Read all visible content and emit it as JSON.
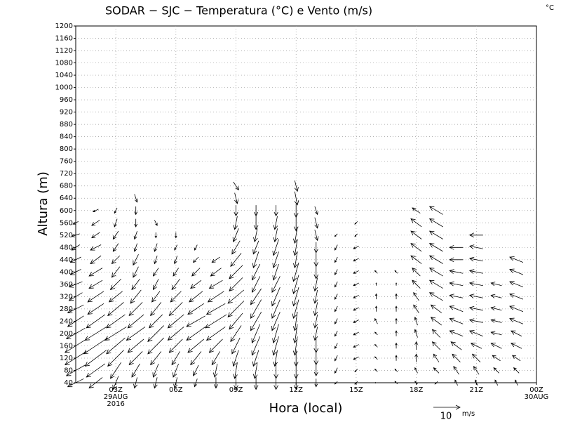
{
  "chart_data": {
    "type": "vector",
    "title": "SODAR − SJC − Temperatura (°C) e Vento (m/s)",
    "corner_label": "°C",
    "xlabel": "Hora (local)",
    "ylabel": "Altura (m)",
    "xlim": [
      1,
      24
    ],
    "ylim": [
      40,
      1200
    ],
    "xticks": [
      {
        "value": 3,
        "label": "03Z"
      },
      {
        "value": 6,
        "label": "06Z"
      },
      {
        "value": 9,
        "label": "09Z"
      },
      {
        "value": 12,
        "label": "12Z"
      },
      {
        "value": 15,
        "label": "15Z"
      },
      {
        "value": 18,
        "label": "18Z"
      },
      {
        "value": 21,
        "label": "21Z"
      },
      {
        "value": 24,
        "label": "00Z"
      }
    ],
    "date_labels": [
      {
        "value": 3,
        "label": "29AUG"
      },
      {
        "value": 3,
        "label": "2016"
      },
      {
        "value": 24,
        "label": "30AUG"
      }
    ],
    "yticks": [
      40,
      80,
      120,
      160,
      200,
      240,
      280,
      320,
      360,
      400,
      440,
      480,
      520,
      560,
      600,
      640,
      680,
      720,
      760,
      800,
      840,
      880,
      920,
      960,
      1000,
      1040,
      1080,
      1120,
      1160,
      1200
    ],
    "grid": true,
    "ref_vector": {
      "value": 10,
      "unit": "m/s"
    },
    "levels": [
      40,
      80,
      120,
      160,
      200,
      240,
      280,
      320,
      360,
      400,
      440,
      480,
      520,
      560,
      600,
      640,
      680
    ],
    "columns": [
      {
        "x": 1,
        "u": [
          -6,
          -7,
          -8,
          -8,
          -7,
          -6,
          -6,
          -5,
          -5,
          -4,
          -4,
          -3,
          -3,
          -2,
          null,
          null,
          null
        ],
        "v": [
          -3,
          -4,
          -5,
          -5,
          -4,
          -4,
          -3,
          -3,
          -2,
          -2,
          -2,
          -2,
          -1,
          -1,
          null,
          null,
          null
        ]
      },
      {
        "x": 2,
        "u": [
          -5,
          -7,
          -8,
          -9,
          -8,
          -7,
          -6,
          -6,
          -5,
          -5,
          -4,
          -4,
          -3,
          -3,
          -2,
          null,
          null
        ],
        "v": [
          -4,
          -5,
          -6,
          -6,
          -5,
          -5,
          -4,
          -4,
          -3,
          -3,
          -3,
          -2,
          -2,
          -2,
          -1,
          null,
          null
        ]
      },
      {
        "x": 3,
        "u": [
          -2,
          -4,
          -6,
          -7,
          -8,
          -7,
          -6,
          -5,
          -4,
          -3,
          -3,
          -2,
          -2,
          -1,
          -1,
          null,
          null
        ],
        "v": [
          -5,
          -6,
          -6,
          -6,
          -5,
          -5,
          -5,
          -4,
          -4,
          -4,
          -3,
          -3,
          -3,
          -3,
          -2,
          null,
          null
        ]
      },
      {
        "x": 4,
        "u": [
          -1,
          -3,
          -5,
          -6,
          -7,
          -6,
          -5,
          -4,
          -3,
          -2,
          -2,
          -1,
          -1,
          0,
          0,
          1,
          null
        ],
        "v": [
          -4,
          -5,
          -5,
          -5,
          -5,
          -5,
          -5,
          -5,
          -4,
          -4,
          -4,
          -3,
          -3,
          -3,
          -3,
          -3,
          null
        ]
      },
      {
        "x": 5,
        "u": [
          -1,
          -2,
          -4,
          -6,
          -6,
          -5,
          -4,
          -3,
          -2,
          -2,
          -1,
          -1,
          0,
          1,
          null,
          null,
          null
        ],
        "v": [
          -4,
          -5,
          -5,
          -6,
          -6,
          -5,
          -5,
          -4,
          -4,
          -3,
          -3,
          -3,
          -2,
          -2,
          null,
          null,
          null
        ]
      },
      {
        "x": 6,
        "u": [
          -1,
          -2,
          -3,
          -5,
          -6,
          -6,
          -5,
          -4,
          -3,
          -2,
          -1,
          -1,
          0,
          null,
          null,
          null,
          null
        ],
        "v": [
          -4,
          -5,
          -5,
          -5,
          -5,
          -5,
          -5,
          -4,
          -4,
          -3,
          -3,
          -2,
          -2,
          null,
          null,
          null,
          null
        ]
      },
      {
        "x": 7,
        "u": [
          -1,
          -2,
          -4,
          -6,
          -7,
          -7,
          -6,
          -5,
          -4,
          -3,
          -2,
          -1,
          null,
          null,
          null,
          null,
          null
        ],
        "v": [
          -3,
          -4,
          -5,
          -5,
          -5,
          -4,
          -4,
          -4,
          -3,
          -3,
          -2,
          -2,
          null,
          null,
          null,
          null,
          null
        ]
      },
      {
        "x": 8,
        "u": [
          0,
          -1,
          -3,
          -5,
          -7,
          -8,
          -7,
          -6,
          -5,
          -4,
          -3,
          null,
          null,
          null,
          null,
          null,
          null
        ],
        "v": [
          -4,
          -5,
          -5,
          -5,
          -5,
          -5,
          -4,
          -4,
          -3,
          -3,
          -2,
          null,
          null,
          null,
          null,
          null,
          null
        ]
      },
      {
        "x": 9,
        "u": [
          0,
          -1,
          -2,
          -3,
          -4,
          -5,
          -6,
          -6,
          -5,
          -5,
          -4,
          -3,
          -2,
          -1,
          0,
          1,
          2
        ],
        "v": [
          -5,
          -6,
          -6,
          -6,
          -6,
          -6,
          -6,
          -5,
          -5,
          -5,
          -5,
          -5,
          -5,
          -5,
          -4,
          -4,
          -3
        ]
      },
      {
        "x": 10,
        "u": [
          0,
          -1,
          -2,
          -3,
          -3,
          -4,
          -4,
          -4,
          -3,
          -3,
          -2,
          -2,
          -1,
          0,
          0,
          null,
          null
        ],
        "v": [
          -5,
          -6,
          -6,
          -7,
          -7,
          -7,
          -7,
          -6,
          -6,
          -6,
          -6,
          -5,
          -5,
          -5,
          -4,
          null,
          null
        ]
      },
      {
        "x": 11,
        "u": [
          0,
          0,
          -1,
          -2,
          -2,
          -3,
          -3,
          -3,
          -3,
          -2,
          -2,
          -2,
          -1,
          -1,
          0,
          null,
          null
        ],
        "v": [
          -5,
          -6,
          -6,
          -7,
          -7,
          -7,
          -7,
          -7,
          -6,
          -6,
          -6,
          -6,
          -5,
          -5,
          -4,
          null,
          null
        ]
      },
      {
        "x": 12,
        "u": [
          0,
          0,
          0,
          -1,
          -1,
          -1,
          -2,
          -2,
          -2,
          -2,
          -1,
          -1,
          -1,
          0,
          0,
          1,
          1
        ],
        "v": [
          -5,
          -6,
          -6,
          -7,
          -7,
          -7,
          -7,
          -7,
          -7,
          -7,
          -6,
          -6,
          -6,
          -6,
          -5,
          -5,
          -4
        ]
      },
      {
        "x": 13,
        "u": [
          0,
          0,
          0,
          0,
          -1,
          -1,
          -1,
          -1,
          -1,
          0,
          0,
          0,
          1,
          1,
          1,
          null,
          null
        ],
        "v": [
          -3,
          -4,
          -5,
          -5,
          -5,
          -5,
          -5,
          -5,
          -5,
          -5,
          -5,
          -4,
          -4,
          -4,
          -3,
          null,
          null
        ]
      },
      {
        "x": 14,
        "u": [
          -1,
          -1,
          -1,
          -1,
          -1,
          -1,
          -1,
          -1,
          -1,
          -1,
          -1,
          -1,
          -1,
          null,
          null,
          null,
          null
        ],
        "v": [
          -1,
          -2,
          -2,
          -2,
          -2,
          -2,
          -2,
          -2,
          -2,
          -2,
          -2,
          -2,
          -1,
          null,
          null,
          null,
          null
        ]
      },
      {
        "x": 15,
        "u": [
          -1,
          -1,
          -2,
          -2,
          -2,
          -2,
          -2,
          -2,
          -2,
          -2,
          -2,
          -2,
          -1,
          -1,
          null,
          null,
          null
        ],
        "v": [
          -1,
          -1,
          -1,
          -1,
          -1,
          -1,
          -1,
          -1,
          -1,
          -1,
          -1,
          -1,
          -1,
          -1,
          null,
          null,
          null
        ]
      },
      {
        "x": 16,
        "u": [
          -1,
          -1,
          -1,
          -1,
          -1,
          -1,
          0,
          0,
          0,
          -1,
          null,
          null,
          null,
          null,
          null,
          null,
          null
        ],
        "v": [
          0,
          1,
          1,
          1,
          1,
          2,
          2,
          2,
          1,
          1,
          null,
          null,
          null,
          null,
          null,
          null,
          null
        ]
      },
      {
        "x": 17,
        "u": [
          -1,
          -1,
          0,
          0,
          0,
          0,
          0,
          0,
          0,
          -1,
          null,
          null,
          null,
          null,
          null,
          null,
          null
        ],
        "v": [
          1,
          1,
          2,
          2,
          2,
          2,
          2,
          2,
          1,
          1,
          null,
          null,
          null,
          null,
          null,
          null,
          null
        ]
      },
      {
        "x": 18,
        "u": [
          -1,
          -1,
          0,
          0,
          -1,
          -1,
          -2,
          -2,
          -3,
          -3,
          -4,
          -4,
          -4,
          -4,
          -3,
          null,
          null
        ],
        "v": [
          1,
          2,
          3,
          3,
          3,
          3,
          3,
          3,
          3,
          3,
          3,
          3,
          3,
          3,
          2,
          null,
          null
        ]
      },
      {
        "x": 19,
        "u": [
          -1,
          -2,
          -2,
          -3,
          -3,
          -4,
          -4,
          -5,
          -5,
          -5,
          -5,
          -5,
          -5,
          -5,
          -5,
          null,
          null
        ],
        "v": [
          -1,
          2,
          3,
          3,
          3,
          3,
          3,
          3,
          3,
          3,
          3,
          3,
          3,
          3,
          3,
          null,
          null
        ]
      },
      {
        "x": 20,
        "u": [
          -1,
          -2,
          -3,
          -4,
          -5,
          -5,
          -5,
          -5,
          -5,
          -5,
          -5,
          -5,
          null,
          null,
          null,
          null,
          null
        ],
        "v": [
          2,
          3,
          3,
          3,
          2,
          2,
          2,
          1,
          1,
          1,
          0,
          0,
          null,
          null,
          null,
          null,
          null
        ]
      },
      {
        "x": 21,
        "u": [
          -1,
          -2,
          -3,
          -4,
          -5,
          -5,
          -5,
          -5,
          -5,
          -5,
          -5,
          -5,
          -5,
          null,
          null,
          null,
          null
        ],
        "v": [
          2,
          3,
          3,
          2,
          2,
          1,
          1,
          1,
          1,
          1,
          1,
          1,
          0,
          null,
          null,
          null,
          null
        ]
      },
      {
        "x": 22,
        "u": [
          -1,
          -2,
          -3,
          -4,
          -4,
          -4,
          -4,
          -4,
          -4,
          null,
          null,
          null,
          null,
          null,
          null,
          null,
          null
        ],
        "v": [
          2,
          2,
          2,
          2,
          1,
          1,
          1,
          1,
          1,
          null,
          null,
          null,
          null,
          null,
          null,
          null,
          null
        ]
      },
      {
        "x": 23,
        "u": [
          -1,
          -2,
          -3,
          -4,
          -4,
          -5,
          -5,
          -5,
          -5,
          -5,
          -5,
          null,
          null,
          null,
          null,
          null,
          null
        ],
        "v": [
          2,
          2,
          2,
          2,
          2,
          2,
          2,
          2,
          2,
          2,
          2,
          null,
          null,
          null,
          null,
          null,
          null
        ]
      }
    ]
  }
}
